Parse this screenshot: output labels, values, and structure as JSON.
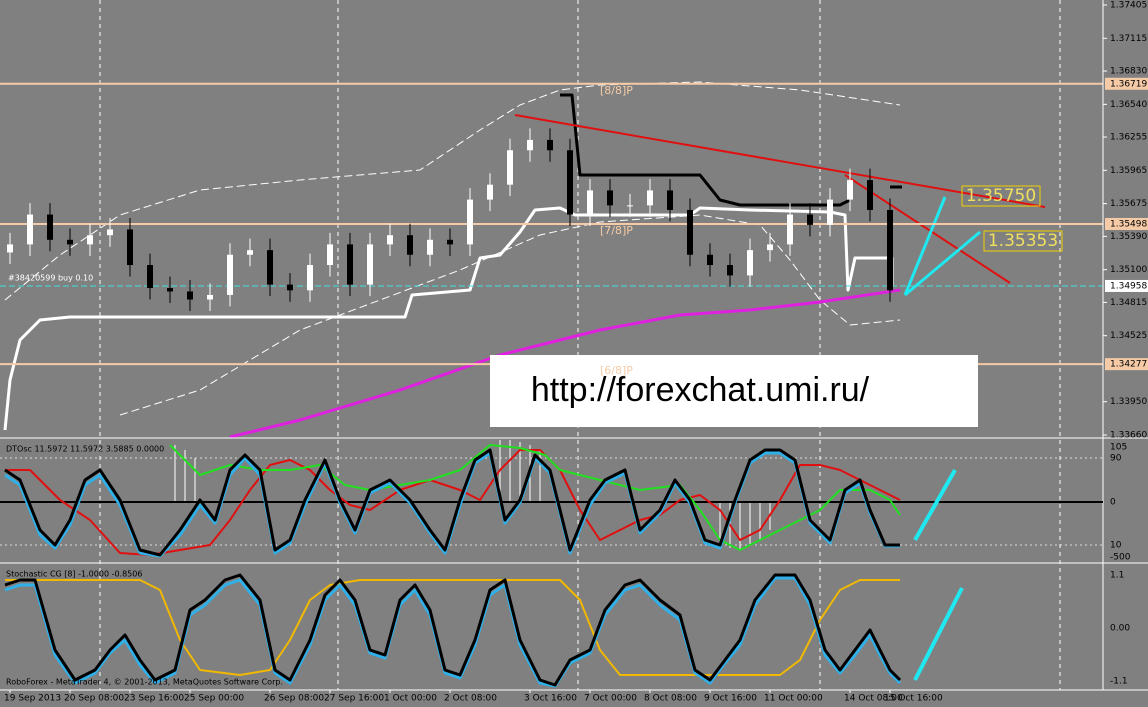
{
  "chart_data": {
    "type": "candlestick",
    "categories": [
      "19 Sep 2013",
      null,
      null,
      "20 Sep 08:00",
      null,
      null,
      "23 Sep 16:00",
      null,
      null,
      "25 Sep 00:00",
      null,
      null,
      null,
      "26 Sep 08:00",
      null,
      null,
      "27 Sep 16:00",
      null,
      null,
      "1 Oct 00:00",
      null,
      null,
      "2 Oct 08:00",
      null,
      null,
      null,
      "3 Oct 16:00",
      null,
      null,
      "7 Oct 00:00",
      null,
      null,
      "8 Oct 08:00",
      null,
      null,
      "9 Oct 16:00",
      null,
      null,
      "11 Oct 00:00",
      null,
      null,
      null,
      "14 Oct 08:00",
      null,
      "15 Oct 16:00"
    ],
    "open": [
      1.3525,
      1.3532,
      1.3558,
      1.3536,
      1.3532,
      1.354,
      1.3545,
      1.3514,
      1.3494,
      1.3491,
      1.3484,
      1.3488,
      1.3523,
      1.3527,
      1.3497,
      1.3492,
      1.3514,
      1.3532,
      1.3497,
      1.3532,
      1.354,
      1.3523,
      1.3536,
      1.3532,
      1.3571,
      1.3584,
      1.3614,
      1.3623,
      1.3614,
      1.3558,
      1.3579,
      1.3566,
      1.3566,
      1.3579,
      1.3562,
      1.3523,
      1.3514,
      1.3505,
      1.3527,
      1.3532,
      1.3558,
      1.3549,
      1.3571,
      1.3588,
      1.3562
    ],
    "high": [
      1.3542,
      1.3568,
      1.3568,
      1.3546,
      1.355,
      1.3555,
      1.3555,
      1.3524,
      1.3504,
      1.3501,
      1.3498,
      1.3533,
      1.3537,
      1.3537,
      1.3507,
      1.3524,
      1.3542,
      1.3542,
      1.3542,
      1.355,
      1.355,
      1.3546,
      1.3546,
      1.3581,
      1.3594,
      1.3624,
      1.3633,
      1.3633,
      1.3624,
      1.3589,
      1.3589,
      1.3576,
      1.3589,
      1.3589,
      1.3572,
      1.3533,
      1.3524,
      1.3537,
      1.3542,
      1.3568,
      1.3568,
      1.3581,
      1.3598,
      1.3598,
      1.3572
    ],
    "low": [
      1.3515,
      1.3522,
      1.3526,
      1.3522,
      1.3522,
      1.353,
      1.3504,
      1.3484,
      1.3481,
      1.3474,
      1.3474,
      1.3478,
      1.3513,
      1.3487,
      1.3482,
      1.3482,
      1.3504,
      1.3487,
      1.3487,
      1.3522,
      1.3513,
      1.3513,
      1.3522,
      1.3522,
      1.3561,
      1.3574,
      1.3604,
      1.3604,
      1.3548,
      1.3548,
      1.3556,
      1.3556,
      1.3556,
      1.3552,
      1.3513,
      1.3504,
      1.3495,
      1.3495,
      1.3517,
      1.3522,
      1.3539,
      1.3539,
      1.3561,
      1.3552,
      1.3482
    ],
    "close": [
      1.3532,
      1.3558,
      1.3536,
      1.3532,
      1.354,
      1.3545,
      1.3514,
      1.3494,
      1.3491,
      1.3484,
      1.3488,
      1.3523,
      1.3527,
      1.3497,
      1.3492,
      1.3514,
      1.3532,
      1.3497,
      1.3532,
      1.354,
      1.3523,
      1.3536,
      1.3532,
      1.3571,
      1.3584,
      1.3614,
      1.3623,
      1.3614,
      1.3558,
      1.3579,
      1.3566,
      1.3566,
      1.3579,
      1.3562,
      1.3523,
      1.3514,
      1.3505,
      1.3527,
      1.3532,
      1.3558,
      1.3549,
      1.3571,
      1.3588,
      1.3562,
      1.3492
    ],
    "up_color": "#ffffff",
    "down_color": "#000000",
    "ylim": [
      1.3366,
      1.37405
    ],
    "yticks": [
      1.37405,
      1.37115,
      {
        "value": 1.3683,
        "label": "1.36830"
      },
      {
        "value": 1.3654,
        "label": "1.36540"
      },
      1.36255,
      1.35965,
      1.35675,
      {
        "value": 1.3539,
        "label": "1.35390"
      },
      {
        "value": 1.351,
        "label": "1.35100"
      },
      1.34815,
      1.34525,
      {
        "value": 1.3395,
        "label": "1.33950"
      },
      {
        "value": 1.3366,
        "label": "1.33660"
      }
    ],
    "levels": [
      {
        "value": 1.36719,
        "label": "[8/8]P"
      },
      {
        "value": 1.35498,
        "label": "[7/8]P"
      },
      {
        "value": 1.34277,
        "label": "[6/8]P"
      }
    ],
    "level_color": "#f5cba7",
    "current_price": {
      "value": 1.34958,
      "label": "#38420599 buy 0.10"
    },
    "annotations": [
      "1.35750",
      "1.35353"
    ],
    "watermark": "http://forexchat.umi.ru/",
    "panels": [
      {
        "title": "DTOsc 11.5972 11.5972 3.5885 0.0000",
        "ticks": [
          "105",
          "90",
          "0",
          "10",
          "-500"
        ]
      },
      {
        "title": "Stochastic CG [8] -1.0000 -0.8506",
        "ticks": [
          "1.1",
          "0.00",
          "-1.1"
        ]
      }
    ],
    "footer": "RoboForex - MetaTrader 4, © 2001-2013, MetaQuotes Software Corp."
  }
}
